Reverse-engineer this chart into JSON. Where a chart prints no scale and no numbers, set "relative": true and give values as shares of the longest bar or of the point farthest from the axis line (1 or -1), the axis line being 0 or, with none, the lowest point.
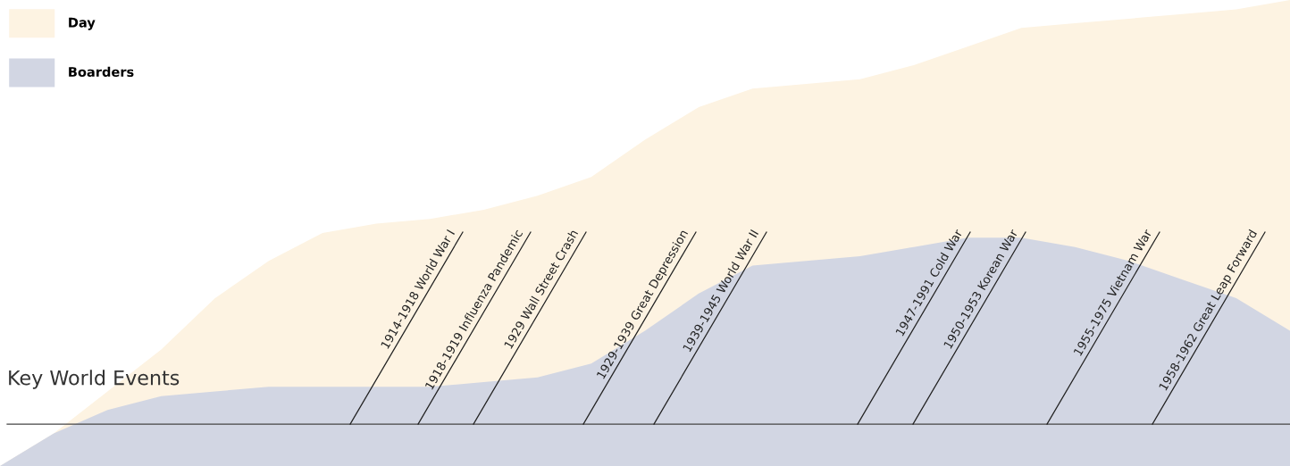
{
  "chart_data": {
    "type": "area",
    "relative": true,
    "legend": "top left",
    "categories": [
      null,
      null,
      null,
      null,
      null,
      null,
      null,
      null,
      null,
      null,
      null,
      null,
      null,
      null,
      null,
      null,
      null,
      null,
      null,
      null,
      null,
      null,
      null,
      null,
      null
    ],
    "series": [
      {
        "name": "Day",
        "color": "#fdf3e2",
        "values": [
          0,
          0.07,
          0.16,
          0.25,
          0.36,
          0.44,
          0.5,
          0.52,
          0.53,
          0.55,
          0.58,
          0.62,
          0.7,
          0.77,
          0.81,
          0.82,
          0.83,
          0.86,
          0.9,
          0.94,
          0.95,
          0.96,
          0.97,
          0.98,
          1.0
        ]
      },
      {
        "name": "Boarders",
        "color": "#d2d6e3",
        "values": [
          0,
          0.07,
          0.12,
          0.15,
          0.16,
          0.17,
          0.17,
          0.17,
          0.17,
          0.18,
          0.19,
          0.22,
          0.29,
          0.37,
          0.43,
          0.44,
          0.45,
          0.47,
          0.49,
          0.49,
          0.47,
          0.44,
          0.4,
          0.36,
          0.29
        ]
      }
    ],
    "ref_lines": [
      {
        "axis": "y",
        "value": 0.09,
        "label": "Key World Events",
        "color": "#444444"
      }
    ],
    "annotations": [
      "1914-1918 World War I",
      "1918-1919 Influenza Pandemic",
      "1929 Wall Street Crash",
      "1929-1939 Great Depression",
      "1939-1945 World War II",
      "1947-1991 Cold War",
      "1950-1953 Korean War",
      "1955-1975 Vietnam War",
      "1958-1962 Great Leap Forward"
    ]
  }
}
